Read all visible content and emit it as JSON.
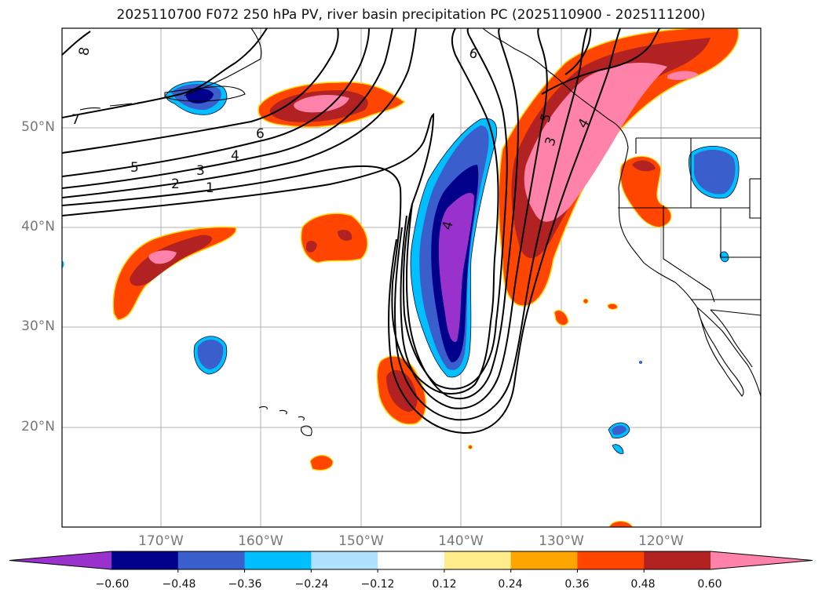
{
  "title": "2025110700 F072 250 hPa PV, river basin precipitation PC (2025110900 - 2025111200)",
  "map": {
    "lat_labels": [
      {
        "value": 50,
        "label": "50°N"
      },
      {
        "value": 40,
        "label": "40°N"
      },
      {
        "value": 30,
        "label": "30°N"
      },
      {
        "value": 20,
        "label": "20°N"
      }
    ],
    "lon_labels": [
      {
        "value": -170,
        "label": "170°W"
      },
      {
        "value": -160,
        "label": "160°W"
      },
      {
        "value": -150,
        "label": "150°W"
      },
      {
        "value": -140,
        "label": "140°W"
      },
      {
        "value": -130,
        "label": "130°W"
      },
      {
        "value": -120,
        "label": "120°W"
      }
    ],
    "contour_labels": [
      "8",
      "7",
      "6",
      "5",
      "4",
      "3",
      "2",
      "1",
      "6",
      "5",
      "4",
      "3",
      "4"
    ]
  },
  "colorbar": {
    "colors": [
      "#9932cc",
      "#00008b",
      "#3a5fcd",
      "#00bfff",
      "#b0e2ff",
      "#ffffff",
      "#ffec8b",
      "#ffa500",
      "#ff4500",
      "#b22222",
      "#ff82ab"
    ],
    "ticks": [
      "−0.60",
      "−0.48",
      "−0.36",
      "−0.24",
      "−0.12",
      "0.12",
      "0.24",
      "0.36",
      "0.48",
      "0.60"
    ]
  }
}
